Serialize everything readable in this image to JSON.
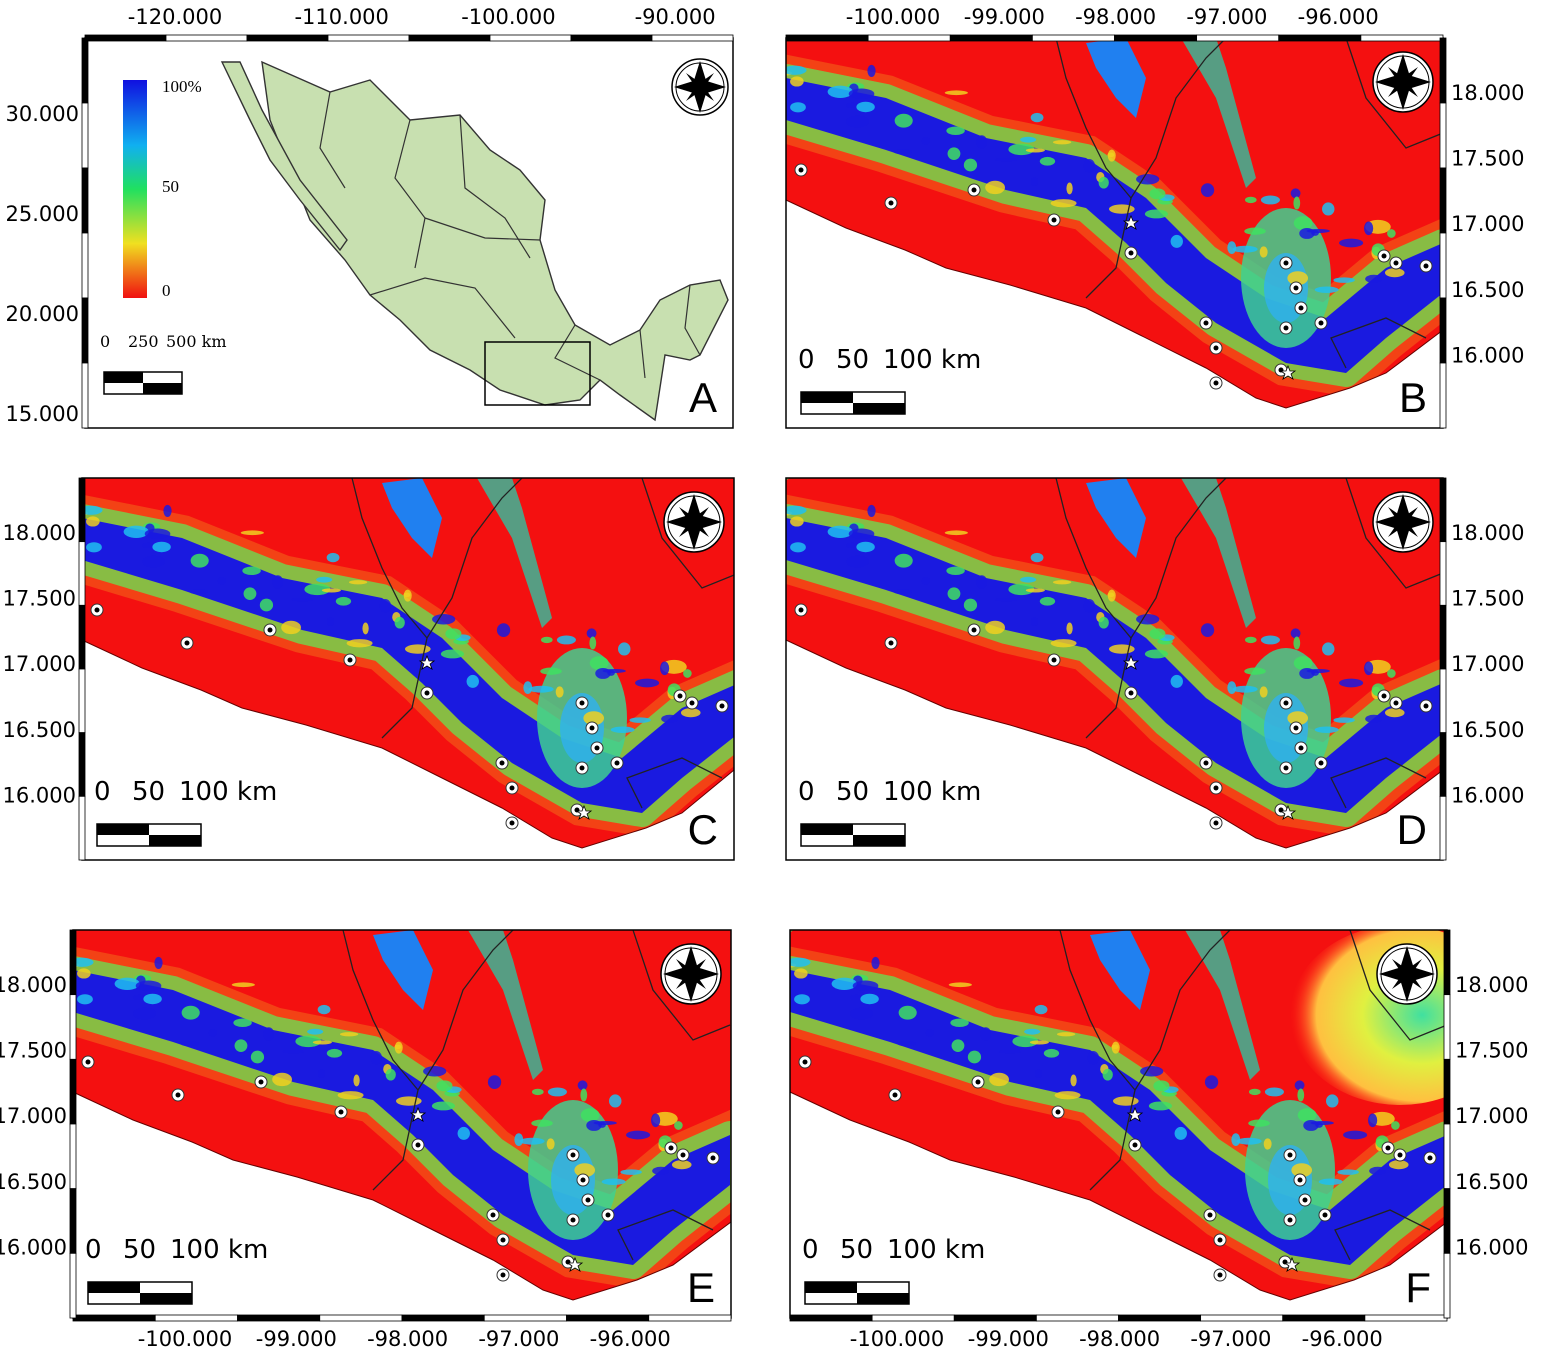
{
  "panels": [
    {
      "letter": "A",
      "scale_labels": [
        "0",
        "250",
        "500 km"
      ],
      "legend_labels": [
        "100%",
        "50",
        "0"
      ],
      "top_ticks": [
        "-120.000",
        "-110.000",
        "-100.000",
        "-90.000"
      ],
      "left_ticks": [
        "30.000",
        "25.000",
        "20.000",
        "15.000"
      ]
    },
    {
      "letter": "B",
      "scale_labels": [
        "0",
        "50",
        "100 km"
      ],
      "top_ticks": [
        "-100.000",
        "-99.000",
        "-98.000",
        "-97.000",
        "-96.000"
      ],
      "right_ticks": [
        "18.000",
        "17.500",
        "17.000",
        "16.500",
        "16.000"
      ]
    },
    {
      "letter": "C",
      "scale_labels": [
        "0",
        "50",
        "100 km"
      ],
      "left_ticks": [
        "18.000",
        "17.500",
        "17.000",
        "16.500",
        "16.000"
      ]
    },
    {
      "letter": "D",
      "scale_labels": [
        "0",
        "50",
        "100 km"
      ],
      "right_ticks": [
        "18.000",
        "17.500",
        "17.000",
        "16.500",
        "16.000"
      ]
    },
    {
      "letter": "E",
      "scale_labels": [
        "0",
        "50",
        "100 km"
      ],
      "left_ticks": [
        "18.000",
        "17.500",
        "17.000",
        "16.500",
        "16.000"
      ],
      "bottom_ticks": [
        "-100.000",
        "-99.000",
        "-98.000",
        "-97.000",
        "-96.000"
      ]
    },
    {
      "letter": "F",
      "scale_labels": [
        "0",
        "50",
        "100 km"
      ],
      "right_ticks": [
        "18.000",
        "17.500",
        "17.000",
        "16.500",
        "16.000"
      ],
      "bottom_ticks": [
        "-100.000",
        "-99.000",
        "-98.000",
        "-97.000",
        "-96.000"
      ]
    }
  ]
}
